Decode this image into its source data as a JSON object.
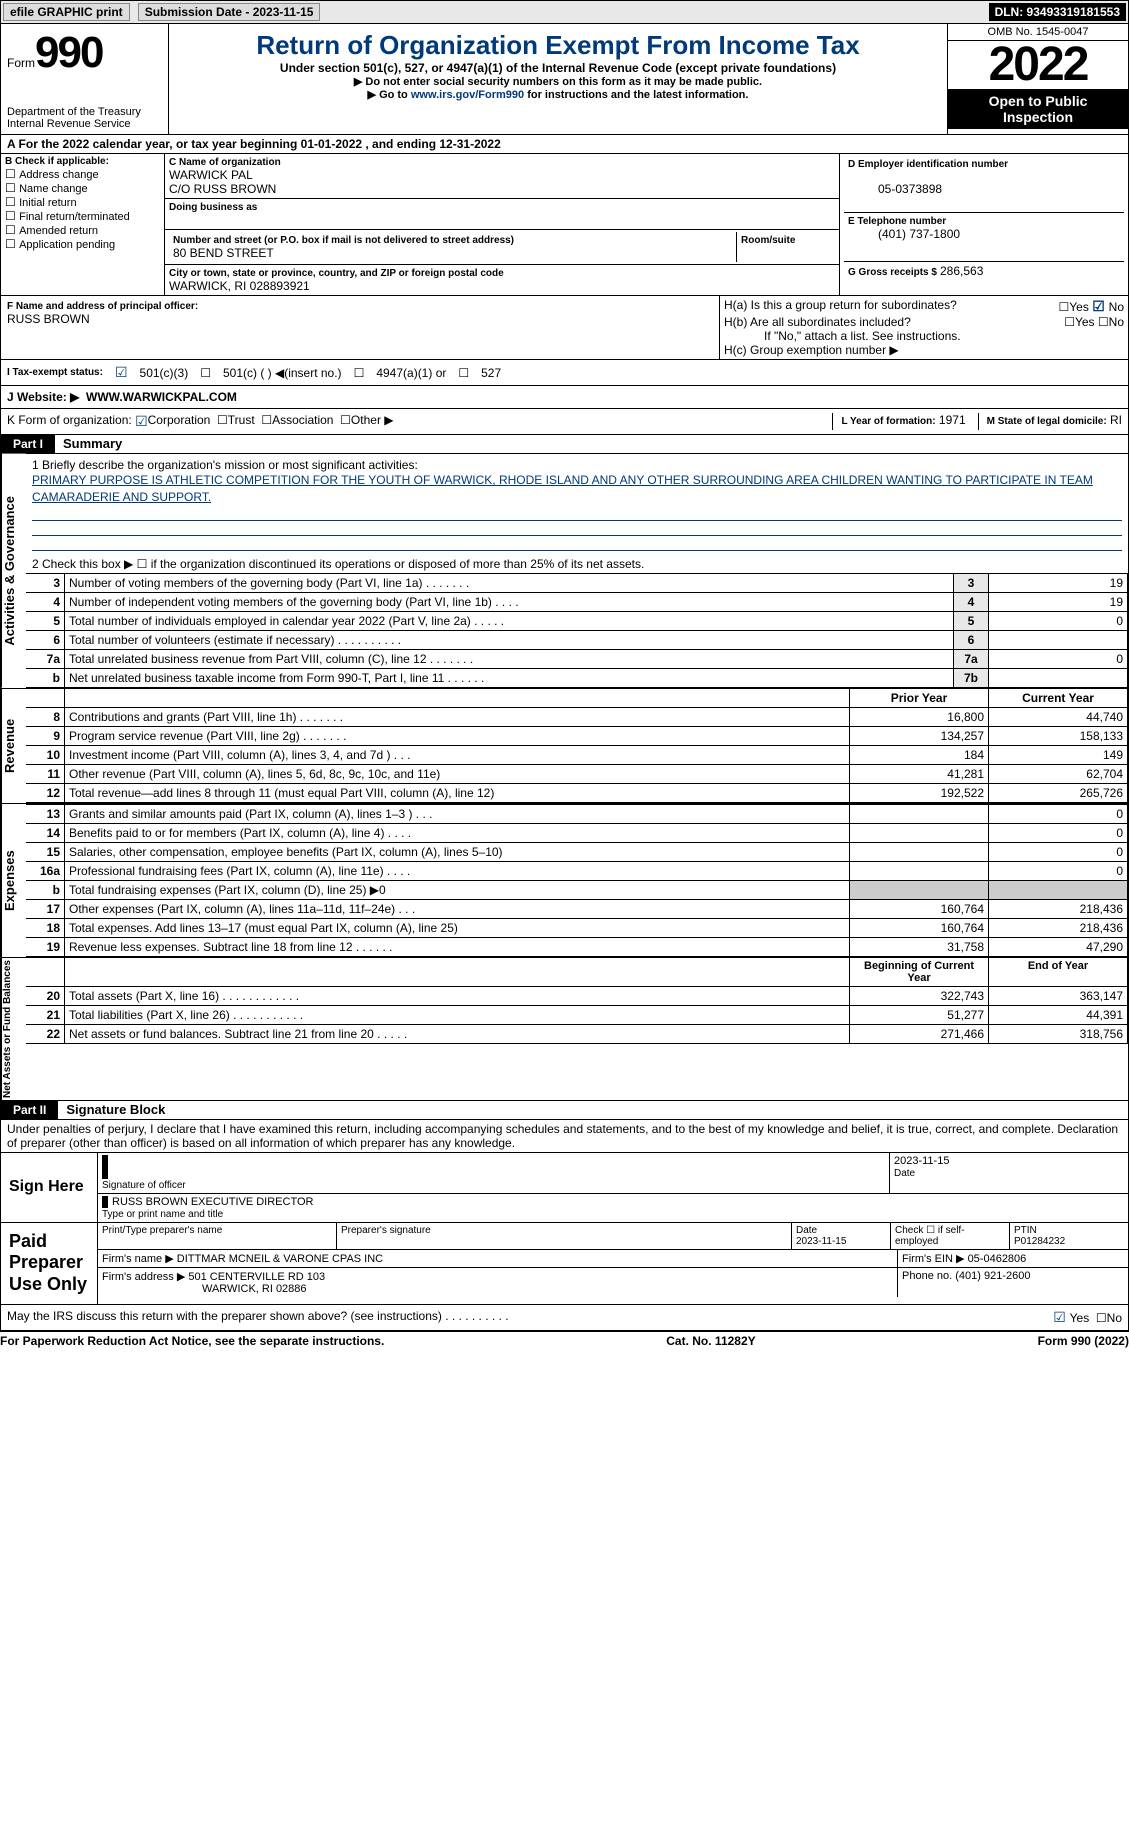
{
  "topbar": {
    "efile": "efile GRAPHIC print",
    "subdate_lbl": "Submission Date - 2023-11-15",
    "dln": "DLN: 93493319181553"
  },
  "header": {
    "form_prefix": "Form",
    "form_num": "990",
    "title": "Return of Organization Exempt From Income Tax",
    "sub1": "Under section 501(c), 527, or 4947(a)(1) of the Internal Revenue Code (except private foundations)",
    "sub2": "▶ Do not enter social security numbers on this form as it may be made public.",
    "sub3_pre": "▶ Go to ",
    "sub3_link": "www.irs.gov/Form990",
    "sub3_post": " for instructions and the latest information.",
    "dept": "Department of the Treasury\nInternal Revenue Service",
    "omb": "OMB No. 1545-0047",
    "year": "2022",
    "open": "Open to Public Inspection"
  },
  "calendar": "A For the 2022 calendar year, or tax year beginning 01-01-2022    , and ending 12-31-2022",
  "B": {
    "label": "B Check if applicable:",
    "items": [
      "Address change",
      "Name change",
      "Initial return",
      "Final return/terminated",
      "Amended return",
      "Application pending"
    ]
  },
  "C": {
    "name_lbl": "C Name of organization",
    "name": "WARWICK PAL",
    "co": "C/O RUSS BROWN",
    "dba_lbl": "Doing business as",
    "dba": "",
    "street_lbl": "Number and street (or P.O. box if mail is not delivered to street address)",
    "street": "80 BEND STREET",
    "room_lbl": "Room/suite",
    "city_lbl": "City or town, state or province, country, and ZIP or foreign postal code",
    "city": "WARWICK, RI  028893921"
  },
  "D": {
    "lbl": "D Employer identification number",
    "val": "05-0373898"
  },
  "E": {
    "lbl": "E Telephone number",
    "val": "(401) 737-1800"
  },
  "G": {
    "lbl": "G Gross receipts $",
    "val": "286,563"
  },
  "F": {
    "lbl": "F  Name and address of principal officer:",
    "val": "RUSS BROWN"
  },
  "H": {
    "a": "H(a)  Is this a group return for subordinates?",
    "b": "H(b)  Are all subordinates included?",
    "note": "If \"No,\" attach a list. See instructions.",
    "c": "H(c)  Group exemption number ▶",
    "yes": "Yes",
    "no": "No"
  },
  "I": {
    "lbl": "I    Tax-exempt status:",
    "opts": [
      "501(c)(3)",
      "501(c) (  ) ◀(insert no.)",
      "4947(a)(1) or",
      "527"
    ]
  },
  "J": {
    "lbl": "J    Website: ▶",
    "val": "WWW.WARWICKPAL.COM"
  },
  "K": {
    "lbl": "K Form of organization:",
    "opts": [
      "Corporation",
      "Trust",
      "Association",
      "Other ▶"
    ]
  },
  "L": {
    "lbl": "L Year of formation:",
    "val": "1971"
  },
  "M": {
    "lbl": "M State of legal domicile:",
    "val": "RI"
  },
  "part1": {
    "label": "Part I",
    "title": "Summary"
  },
  "summary": {
    "mission_lbl": "1  Briefly describe the organization's mission or most significant activities:",
    "mission": "PRIMARY PURPOSE IS ATHLETIC COMPETITION FOR THE YOUTH OF WARWICK, RHODE ISLAND AND ANY OTHER SURROUNDING AREA CHILDREN WANTING TO PARTICIPATE IN TEAM CAMARADERIE AND SUPPORT.",
    "line2": "2    Check this box ▶ ☐  if the organization discontinued its operations or disposed of more than 25% of its net assets.",
    "lines_ag": [
      {
        "n": "3",
        "d": "Number of voting members of the governing body (Part VI, line 1a)   .     .     .     .     .     .     .",
        "b": "3",
        "v": "19"
      },
      {
        "n": "4",
        "d": "Number of independent voting members of the governing body (Part VI, line 1b)   .     .     .     .",
        "b": "4",
        "v": "19"
      },
      {
        "n": "5",
        "d": "Total number of individuals employed in calendar year 2022 (Part V, line 2a)   .     .     .     .     .",
        "b": "5",
        "v": "0"
      },
      {
        "n": "6",
        "d": "Total number of volunteers (estimate if necessary)    .     .     .     .     .     .     .     .     .     .",
        "b": "6",
        "v": ""
      },
      {
        "n": "7a",
        "d": "Total unrelated business revenue from Part VIII, column (C), line 12    .     .     .     .     .     .     .",
        "b": "7a",
        "v": "0"
      },
      {
        "n": "b",
        "d": "Net unrelated business taxable income from Form 990-T, Part I, line 11   .     .     .     .     .     .",
        "b": "7b",
        "v": ""
      }
    ],
    "col_py": "Prior Year",
    "col_cy": "Current Year",
    "revenue": [
      {
        "n": "8",
        "d": "Contributions and grants (Part VIII, line 1h)    .     .     .     .     .     .     .",
        "p": "16,800",
        "c": "44,740"
      },
      {
        "n": "9",
        "d": "Program service revenue (Part VIII, line 2g)    .     .     .     .     .     .     .",
        "p": "134,257",
        "c": "158,133"
      },
      {
        "n": "10",
        "d": "Investment income (Part VIII, column (A), lines 3, 4, and 7d )    .     .     .",
        "p": "184",
        "c": "149"
      },
      {
        "n": "11",
        "d": "Other revenue (Part VIII, column (A), lines 5, 6d, 8c, 9c, 10c, and 11e)",
        "p": "41,281",
        "c": "62,704"
      },
      {
        "n": "12",
        "d": "Total revenue—add lines 8 through 11 (must equal Part VIII, column (A), line 12)",
        "p": "192,522",
        "c": "265,726"
      }
    ],
    "expenses": [
      {
        "n": "13",
        "d": "Grants and similar amounts paid (Part IX, column (A), lines 1–3 )   .     .     .",
        "p": "",
        "c": "0"
      },
      {
        "n": "14",
        "d": "Benefits paid to or for members (Part IX, column (A), line 4)   .     .     .     .",
        "p": "",
        "c": "0"
      },
      {
        "n": "15",
        "d": "Salaries, other compensation, employee benefits (Part IX, column (A), lines 5–10)",
        "p": "",
        "c": "0"
      },
      {
        "n": "16a",
        "d": "Professional fundraising fees (Part IX, column (A), line 11e)    .     .     .     .",
        "p": "",
        "c": "0"
      },
      {
        "n": "b",
        "d": "Total fundraising expenses (Part IX, column (D), line 25) ▶0",
        "p": "SHADE",
        "c": "SHADE"
      },
      {
        "n": "17",
        "d": "Other expenses (Part IX, column (A), lines 11a–11d, 11f–24e)    .     .     .",
        "p": "160,764",
        "c": "218,436"
      },
      {
        "n": "18",
        "d": "Total expenses. Add lines 13–17 (must equal Part IX, column (A), line 25)",
        "p": "160,764",
        "c": "218,436"
      },
      {
        "n": "19",
        "d": "Revenue less expenses. Subtract line 18 from line 12  .     .     .     .     .     .",
        "p": "31,758",
        "c": "47,290"
      }
    ],
    "col_bcy": "Beginning of Current Year",
    "col_eoy": "End of Year",
    "netassets": [
      {
        "n": "20",
        "d": "Total assets (Part X, line 16)  .     .     .     .     .     .     .     .     .     .     .     .",
        "p": "322,743",
        "c": "363,147"
      },
      {
        "n": "21",
        "d": "Total liabilities (Part X, line 26)  .     .     .     .     .     .     .     .     .     .     .",
        "p": "51,277",
        "c": "44,391"
      },
      {
        "n": "22",
        "d": "Net assets or fund balances. Subtract line 21 from line 20  .     .     .     .     .",
        "p": "271,466",
        "c": "318,756"
      }
    ]
  },
  "part2": {
    "label": "Part II",
    "title": "Signature Block"
  },
  "penalties": "Under penalties of perjury, I declare that I have examined this return, including accompanying schedules and statements, and to the best of my knowledge and belief, it is true, correct, and complete. Declaration of preparer (other than officer) is based on all information of which preparer has any knowledge.",
  "sign": {
    "here": "Sign Here",
    "sigoff": "Signature of officer",
    "date": "Date",
    "sigdate": "2023-11-15",
    "name": "RUSS BROWN  EXECUTIVE DIRECTOR",
    "name_lbl": "Type or print name and title"
  },
  "paid": {
    "lbl": "Paid Preparer Use Only",
    "ppname_lbl": "Print/Type preparer's name",
    "ppsig_lbl": "Preparer's signature",
    "ppdate_lbl": "Date",
    "ppdate": "2023-11-15",
    "sel_lbl": "Check ☐ if self-employed",
    "ptin_lbl": "PTIN",
    "ptin": "P01284232",
    "firm_lbl": "Firm's name   ▶",
    "firm": "DITTMAR MCNEIL & VARONE CPAS INC",
    "ein_lbl": "Firm's EIN ▶",
    "ein": "05-0462806",
    "addr_lbl": "Firm's address ▶",
    "addr": "501 CENTERVILLE RD 103",
    "addr2": "WARWICK, RI  02886",
    "phone_lbl": "Phone no.",
    "phone": "(401) 921-2600"
  },
  "discuss": "May the IRS discuss this return with the preparer shown above? (see instructions)   .     .     .     .     .     .     .     .     .     .",
  "footer": {
    "pra": "For Paperwork Reduction Act Notice, see the separate instructions.",
    "cat": "Cat. No. 11282Y",
    "form": "Form 990 (2022)"
  }
}
